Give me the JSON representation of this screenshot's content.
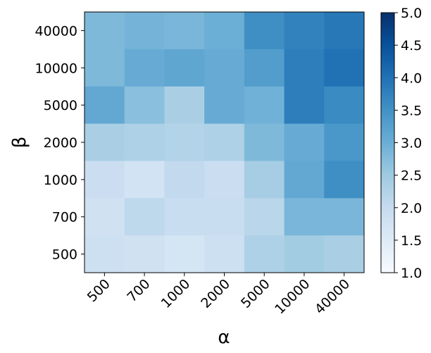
{
  "chart_data": {
    "type": "heatmap",
    "xlabel": "α",
    "ylabel": "β",
    "x_categories": [
      "500",
      "700",
      "1000",
      "2000",
      "5000",
      "10000",
      "40000"
    ],
    "y_categories": [
      "40000",
      "10000",
      "5000",
      "2000",
      "1000",
      "700",
      "500"
    ],
    "values": [
      [
        2.8,
        2.9,
        2.85,
        3.0,
        3.55,
        3.75,
        3.9
      ],
      [
        2.8,
        3.05,
        3.15,
        3.05,
        3.3,
        3.8,
        4.0
      ],
      [
        3.1,
        2.7,
        2.35,
        3.05,
        2.95,
        3.8,
        3.6
      ],
      [
        2.35,
        2.3,
        2.25,
        2.3,
        2.8,
        3.05,
        3.4
      ],
      [
        1.9,
        1.75,
        2.05,
        1.9,
        2.4,
        3.1,
        3.55
      ],
      [
        1.8,
        2.1,
        1.95,
        1.95,
        2.15,
        2.85,
        2.85
      ],
      [
        1.85,
        1.8,
        1.7,
        1.85,
        2.3,
        2.45,
        2.35
      ]
    ],
    "colorbar": {
      "min": 1.0,
      "max": 5.0,
      "ticks": [
        "1.0",
        "1.5",
        "2.0",
        "2.5",
        "3.0",
        "3.5",
        "4.0",
        "4.5",
        "5.0"
      ],
      "colormap": "Blues"
    }
  }
}
